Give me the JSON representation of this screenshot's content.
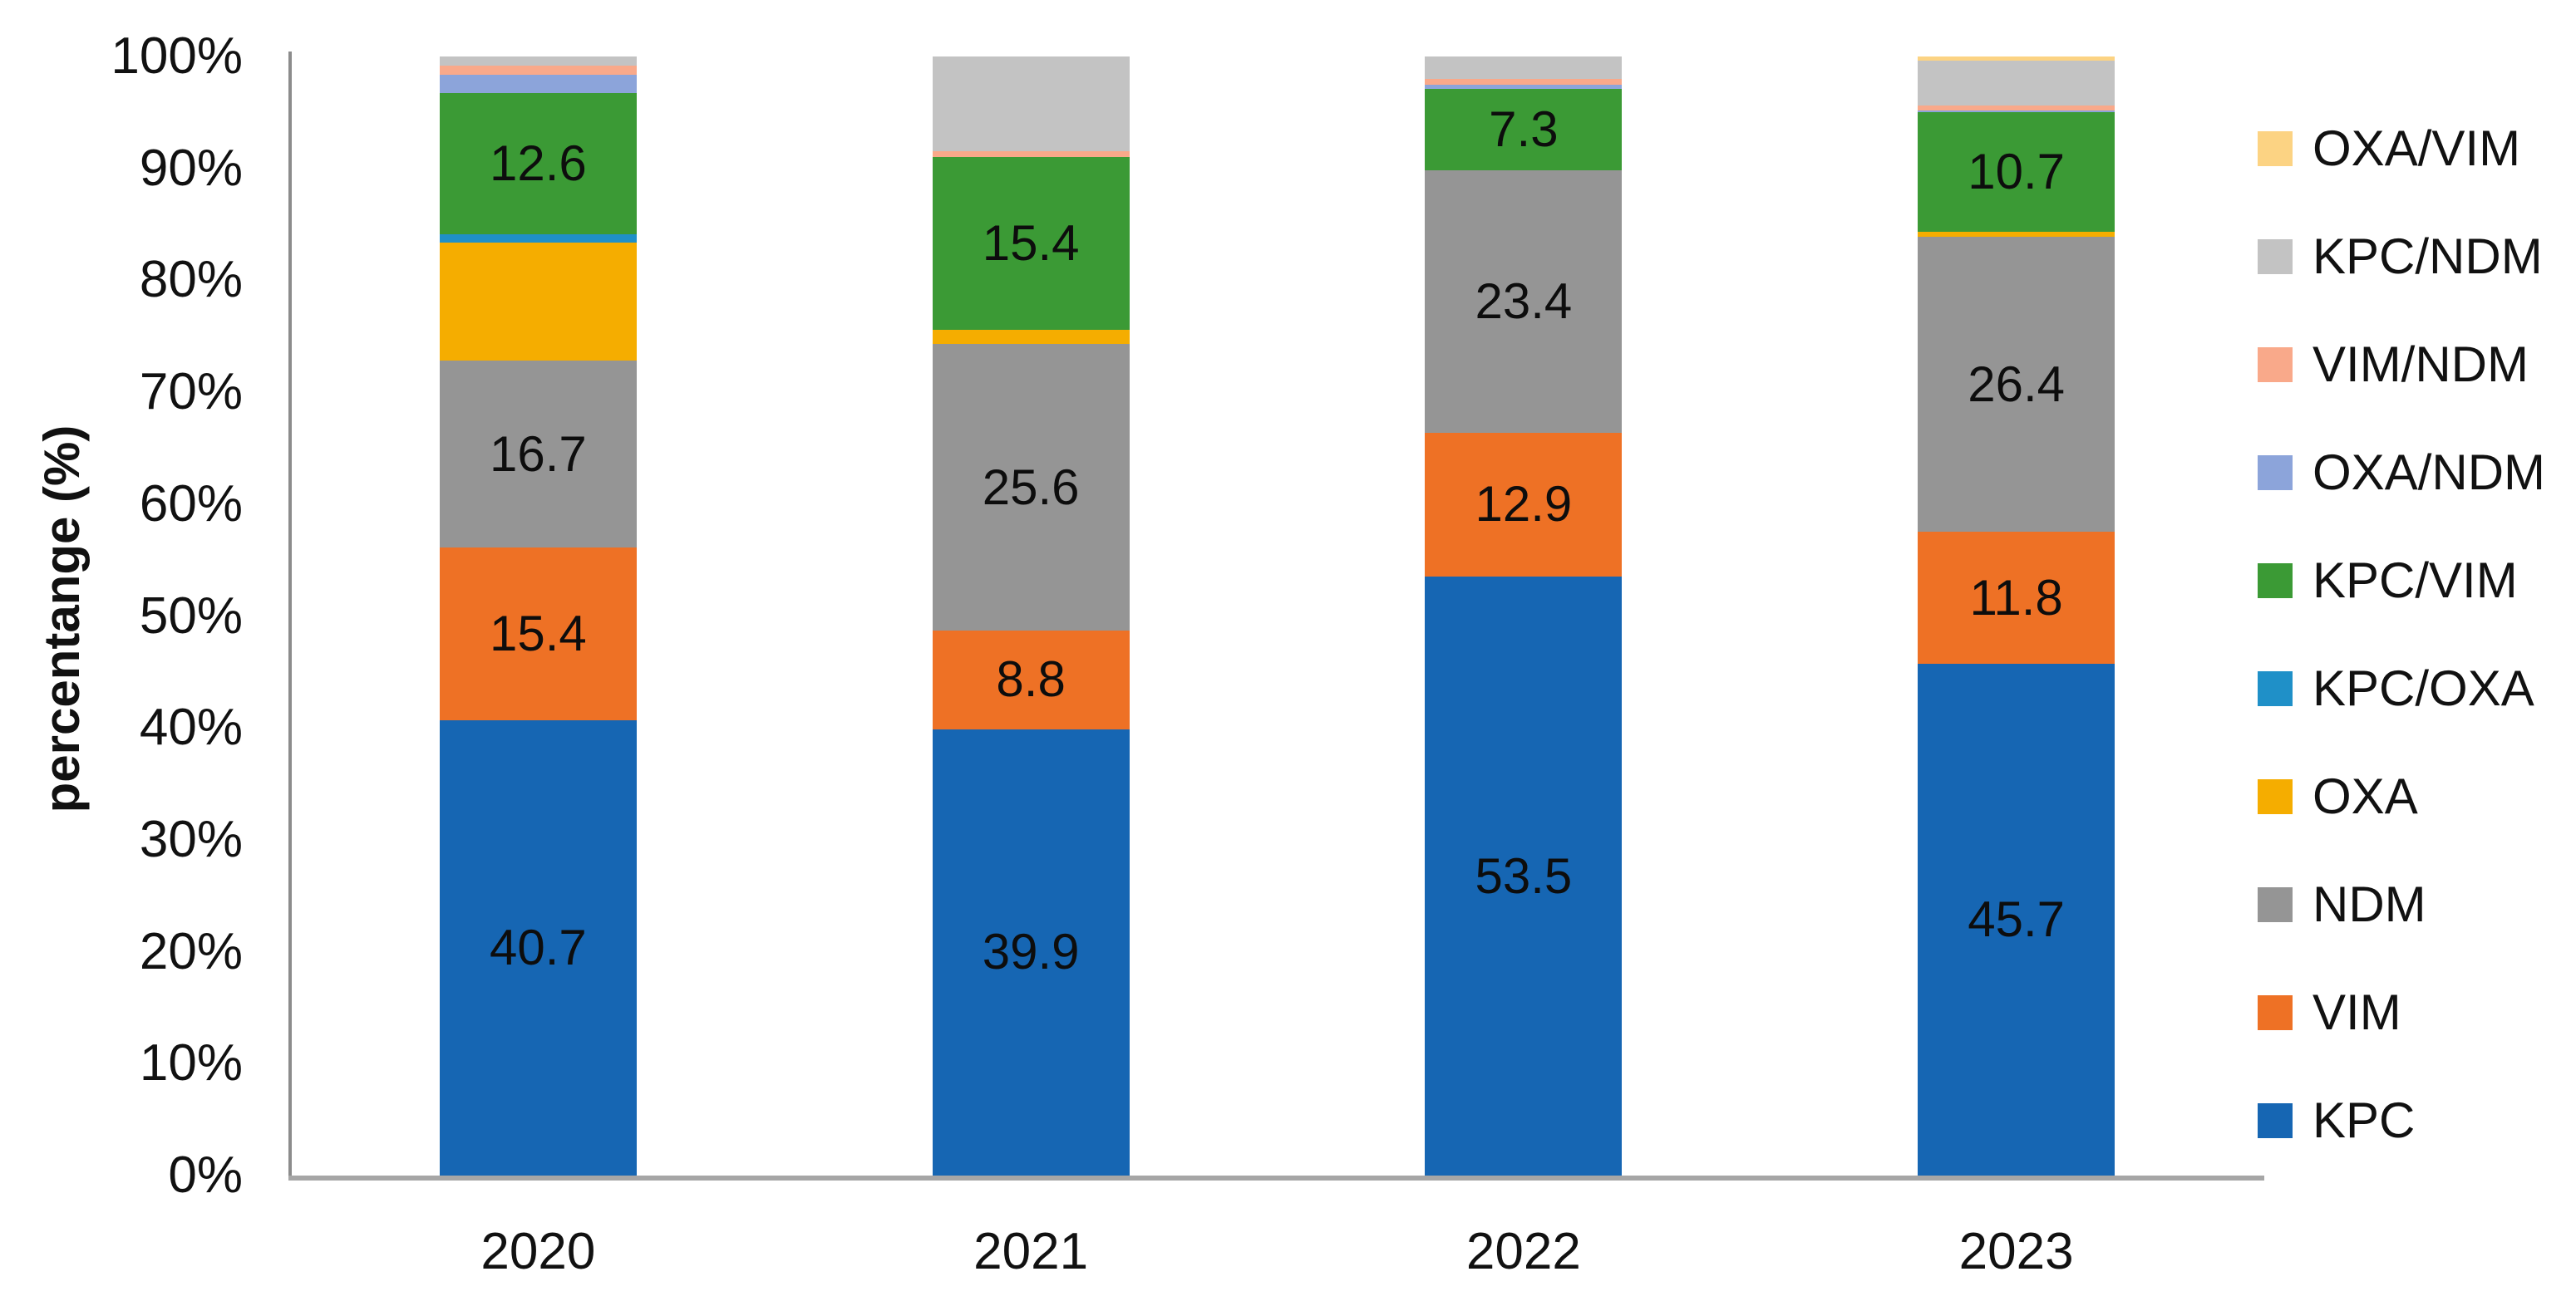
{
  "chart_data": {
    "type": "bar",
    "variant": "stacked-100-percent-column",
    "title": "",
    "xlabel": "",
    "ylabel": "percentange (%)",
    "ylim": [
      0,
      100
    ],
    "grid": false,
    "legend_position": "right",
    "y_tick_labels": [
      "0%",
      "10%",
      "20%",
      "30%",
      "40%",
      "50%",
      "60%",
      "70%",
      "80%",
      "90%",
      "100%"
    ],
    "categories": [
      "2020",
      "2021",
      "2022",
      "2023"
    ],
    "series": [
      {
        "name": "KPC",
        "color": "#1666B3",
        "values": [
          40.7,
          39.9,
          53.5,
          45.7
        ],
        "data_labels": [
          "40.7",
          "39.9",
          "53.5",
          "45.7"
        ]
      },
      {
        "name": "VIM",
        "color": "#EE7125",
        "values": [
          15.4,
          8.8,
          12.9,
          11.8
        ],
        "data_labels": [
          "15.4",
          "8.8",
          "12.9",
          "11.8"
        ]
      },
      {
        "name": "NDM",
        "color": "#959595",
        "values": [
          16.7,
          25.6,
          23.4,
          26.4
        ],
        "data_labels": [
          "16.7",
          "25.6",
          "23.4",
          "26.4"
        ]
      },
      {
        "name": "OXA",
        "color": "#F5AD00",
        "values": [
          10.6,
          1.3,
          0,
          0.4
        ],
        "data_labels": [
          "",
          "",
          "",
          ""
        ]
      },
      {
        "name": "KPC/OXA",
        "color": "#1F90C8",
        "values": [
          0.7,
          0,
          0,
          0
        ],
        "data_labels": [
          "",
          "",
          "",
          ""
        ]
      },
      {
        "name": "KPC/VIM",
        "color": "#3B9A35",
        "values": [
          12.6,
          15.4,
          7.3,
          10.7
        ],
        "data_labels": [
          "12.6",
          "15.4",
          "7.3",
          "10.7"
        ]
      },
      {
        "name": "OXA/NDM",
        "color": "#8CA4DA",
        "values": [
          1.7,
          0,
          0.4,
          0.2
        ],
        "data_labels": [
          "",
          "",
          "",
          ""
        ]
      },
      {
        "name": "VIM/NDM",
        "color": "#F9A98A",
        "values": [
          0.8,
          0.5,
          0.5,
          0.4
        ],
        "data_labels": [
          "",
          "",
          "",
          ""
        ]
      },
      {
        "name": "KPC/NDM",
        "color": "#C3C3C3",
        "values": [
          0.8,
          8.5,
          2.0,
          4.0
        ],
        "data_labels": [
          "",
          "",
          "",
          ""
        ]
      },
      {
        "name": "OXA/VIM",
        "color": "#FCD383",
        "values": [
          0,
          0,
          0,
          0.4
        ],
        "data_labels": [
          "",
          "",
          "",
          ""
        ]
      }
    ],
    "legend_order_top_to_bottom": [
      "OXA/VIM",
      "KPC/NDM",
      "VIM/NDM",
      "OXA/NDM",
      "KPC/VIM",
      "KPC/OXA",
      "OXA",
      "NDM",
      "VIM",
      "KPC"
    ]
  }
}
